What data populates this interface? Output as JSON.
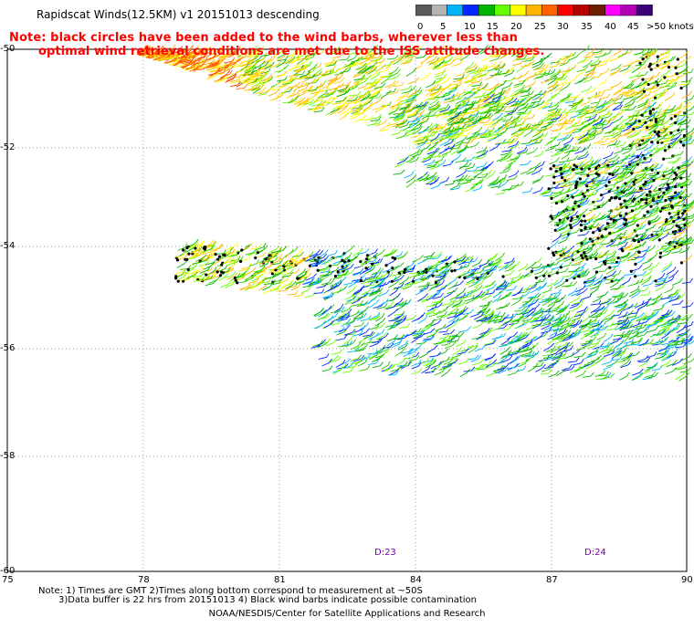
{
  "header": {
    "title": "Rapidscat Winds(12.5KM) v1 20151013 descending"
  },
  "note": {
    "line1": "Note: black circles have been added to the wind barbs, wherever less than",
    "line2": "optimal wind retrieval conditions are met due to the ISS attitude changes."
  },
  "color_scale": {
    "unit": "knots",
    "labels": [
      "0",
      "5",
      "10",
      "15",
      "20",
      "25",
      "30",
      "35",
      "40",
      "45",
      ">50 knots"
    ],
    "colors": [
      "#5a5a5a",
      "#b4b4b4",
      "#00b4ff",
      "#0028ff",
      "#00b400",
      "#64ff00",
      "#ffff00",
      "#ffb400",
      "#ff6400",
      "#ff0000",
      "#b40000",
      "#6e1e00",
      "#ff00ff",
      "#b400b4",
      "#3c0078"
    ]
  },
  "map": {
    "lon_ticks": [
      "75",
      "78",
      "81",
      "84",
      "87",
      "90"
    ],
    "lat_ticks": [
      "-50",
      "-52",
      "-54",
      "-56",
      "-58",
      "-60"
    ],
    "time_markers": [
      {
        "label": "D:23"
      },
      {
        "label": "D:24"
      }
    ],
    "grid": true
  },
  "footer": {
    "line1": "Note: 1) Times are GMT 2)Times along bottom correspond to measurement at ~50S",
    "line2": "3)Data buffer is 22 hrs from 20151013 4) Black wind barbs indicate possible contamination",
    "credit": "NOAA/NESDIS/Center for Satellite Applications and Research"
  }
}
